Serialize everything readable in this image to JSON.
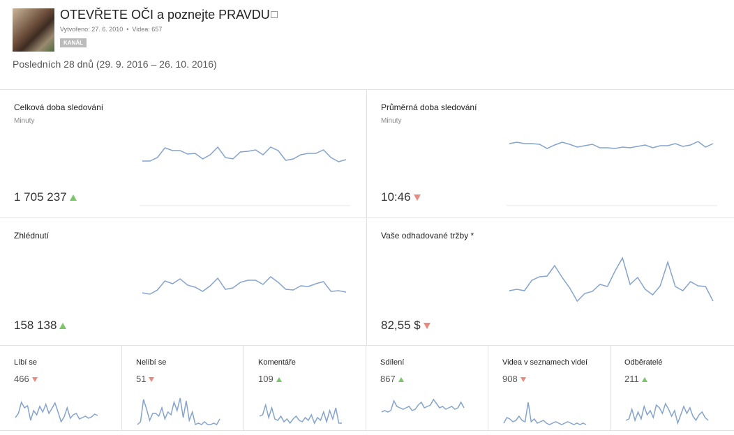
{
  "header": {
    "title": "OTEVŘETE OČI a poznejte PRAVDU",
    "created": "Vytvořeno: 27. 6. 2010",
    "videos": "Videa: 657",
    "badge": "KANÁL"
  },
  "period": "Posledních 28 dnů (29. 9. 2016 – 26. 10. 2016)",
  "metrics": [
    {
      "title": "Celková doba sledování",
      "subtitle": "Minuty",
      "value": "1 705 237",
      "sparkline": [
        64,
        64,
        69,
        83,
        79,
        79,
        74,
        75,
        67,
        73,
        84,
        69,
        67,
        77,
        78,
        80,
        73,
        84,
        79,
        65,
        67,
        73,
        75,
        75,
        80,
        69,
        63,
        66
      ]
    },
    {
      "title": "Průměrná doba sledování",
      "subtitle": "Minuty",
      "value": "10:46",
      "sparkline": [
        89,
        91,
        89,
        89,
        88,
        82,
        87,
        91,
        88,
        84,
        86,
        88,
        83,
        83,
        82,
        84,
        83,
        85,
        87,
        83,
        86,
        86,
        89,
        85,
        87,
        92,
        84,
        89
      ]
    },
    {
      "title": "Zhlédnutí",
      "value": "158 138",
      "sparkline": [
        59,
        57,
        63,
        76,
        72,
        79,
        70,
        67,
        61,
        69,
        80,
        64,
        66,
        74,
        77,
        77,
        71,
        82,
        74,
        64,
        63,
        69,
        68,
        72,
        75,
        61,
        62,
        60
      ]
    },
    {
      "title": "Vaše odhadované tržby *",
      "value": "82,55 $",
      "sparkline": [
        62,
        64,
        62,
        77,
        82,
        83,
        98,
        81,
        66,
        47,
        58,
        61,
        71,
        68,
        90,
        109,
        71,
        81,
        64,
        56,
        69,
        103,
        68,
        62,
        75,
        69,
        68,
        47
      ]
    }
  ],
  "small_metrics": [
    {
      "title": "Líbí se",
      "value": "466",
      "sparkline": [
        14,
        20,
        36,
        28,
        31,
        10,
        24,
        18,
        30,
        22,
        33,
        20,
        27,
        35,
        22,
        8,
        15,
        28,
        13,
        18,
        20,
        12,
        14,
        16,
        13,
        15,
        19,
        17
      ]
    },
    {
      "title": "Nelíbí se",
      "value": "51",
      "sparkline": [
        4,
        8,
        40,
        26,
        10,
        20,
        20,
        16,
        28,
        12,
        22,
        18,
        36,
        24,
        42,
        14,
        38,
        10,
        22,
        4,
        6,
        4,
        8,
        4,
        4,
        6,
        4,
        12
      ]
    },
    {
      "title": "Komentáře",
      "value": "109",
      "sparkline": [
        16,
        18,
        32,
        14,
        28,
        12,
        10,
        16,
        8,
        12,
        6,
        12,
        16,
        10,
        8,
        14,
        10,
        18,
        6,
        14,
        10,
        22,
        8,
        24,
        12,
        28,
        6,
        6
      ]
    },
    {
      "title": "Sdílení",
      "value": "867",
      "sparkline": [
        22,
        24,
        22,
        24,
        38,
        30,
        28,
        26,
        28,
        30,
        24,
        26,
        32,
        36,
        28,
        30,
        32,
        40,
        34,
        28,
        30,
        26,
        28,
        30,
        26,
        28,
        36,
        28
      ]
    },
    {
      "title": "Videa v seznamech videí",
      "value": "908",
      "sparkline": [
        6,
        14,
        12,
        8,
        10,
        16,
        10,
        8,
        36,
        8,
        12,
        6,
        8,
        10,
        6,
        4,
        6,
        8,
        6,
        4,
        6,
        8,
        6,
        4,
        6,
        4,
        6,
        4
      ]
    },
    {
      "title": "Odběratelé",
      "value": "211",
      "sparkline": [
        10,
        12,
        26,
        10,
        22,
        12,
        30,
        18,
        24,
        14,
        32,
        28,
        20,
        34,
        26,
        16,
        24,
        6,
        18,
        30,
        20,
        28,
        16,
        10,
        18,
        22,
        14,
        10
      ]
    }
  ]
}
